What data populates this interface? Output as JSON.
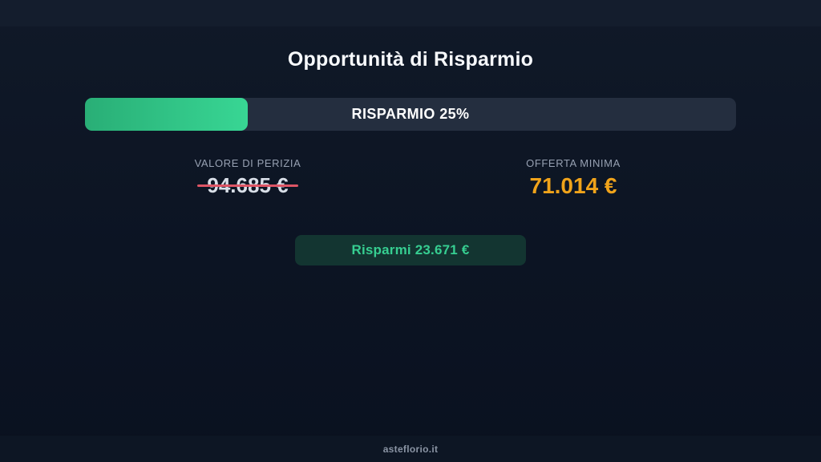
{
  "page": {
    "title": "Opportunità di Risparmio"
  },
  "progress": {
    "label": "RISPARMIO 25%",
    "percent": 25
  },
  "stats": {
    "appraisal": {
      "label": "VALORE DI PERIZIA",
      "value": "94.685 €"
    },
    "minimum_offer": {
      "label": "OFFERTA MINIMA",
      "value": "71.014 €"
    }
  },
  "savings": {
    "badge_label": "Risparmi 23.671 €"
  },
  "footer": {
    "watermark": "asteflorio.it"
  },
  "colors": {
    "background_top": "#101928",
    "background_bottom": "#0a1120",
    "progress_track": "#242e3f",
    "progress_fill_start": "#29ae76",
    "progress_fill_end": "#38d694",
    "offer_orange": "#f0a31a",
    "strike_red": "#dd5565",
    "savings_green": "#36ce91",
    "badge_background": "#133531"
  }
}
